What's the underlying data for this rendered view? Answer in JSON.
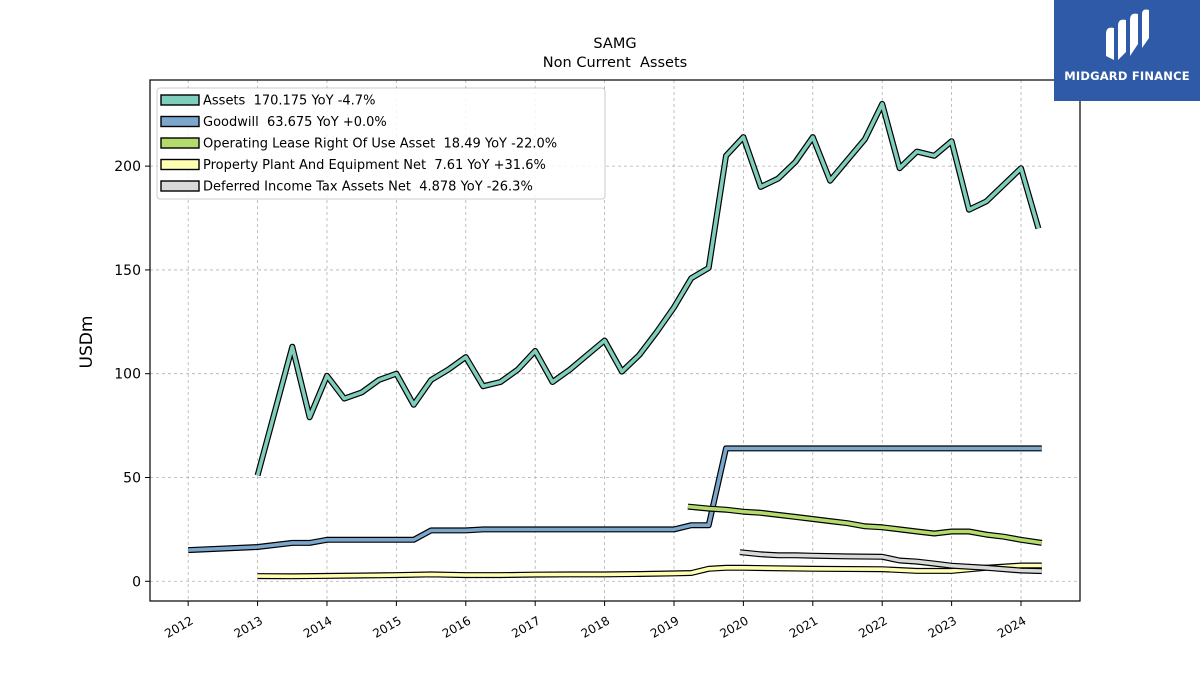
{
  "chart_data": {
    "type": "line",
    "title": "SAMG",
    "subtitle": "Non Current  Assets",
    "xlabel": "",
    "ylabel": "USDm",
    "xlim": [
      2011.45,
      2024.85
    ],
    "ylim": [
      -9.5,
      241.5
    ],
    "yticks": [
      0,
      50,
      100,
      150,
      200
    ],
    "xticks": [
      2012,
      2013,
      2014,
      2015,
      2016,
      2017,
      2018,
      2019,
      2020,
      2021,
      2022,
      2023,
      2024
    ],
    "grid": true,
    "legend_position": "top-left",
    "series": [
      {
        "name": "Assets  170.175 YoY -4.7%",
        "color": "#7fcdbb",
        "x": [
          2013.0,
          2013.5,
          2013.75,
          2014.0,
          2014.25,
          2014.5,
          2014.75,
          2015.0,
          2015.25,
          2015.5,
          2015.75,
          2016.0,
          2016.25,
          2016.5,
          2016.75,
          2017.0,
          2017.25,
          2017.5,
          2017.75,
          2018.0,
          2018.25,
          2018.5,
          2018.75,
          2019.0,
          2019.25,
          2019.5,
          2019.75,
          2020.0,
          2020.25,
          2020.5,
          2020.75,
          2021.0,
          2021.25,
          2021.5,
          2021.75,
          2022.0,
          2022.25,
          2022.5,
          2022.75,
          2023.0,
          2023.25,
          2023.5,
          2023.75,
          2024.0,
          2024.25
        ],
        "values": [
          51,
          113,
          79,
          99,
          88,
          91,
          97,
          100,
          85,
          97,
          102,
          108,
          94,
          96,
          102,
          111,
          96,
          102,
          109,
          116,
          101,
          109,
          120,
          132,
          146,
          151,
          205,
          214,
          190,
          194,
          202,
          214,
          193,
          203,
          213,
          230,
          199,
          207,
          205,
          212,
          179,
          183,
          191,
          199,
          170
        ]
      },
      {
        "name": "Goodwill  63.675 YoY +0.0%",
        "color": "#7ba7cc",
        "x": [
          2012.0,
          2013.0,
          2013.5,
          2013.75,
          2014.0,
          2014.25,
          2014.5,
          2014.75,
          2015.0,
          2015.25,
          2015.5,
          2015.75,
          2016.0,
          2016.25,
          2016.5,
          2016.75,
          2017.0,
          2017.5,
          2018.0,
          2018.5,
          2019.0,
          2019.25,
          2019.5,
          2019.75,
          2020.0,
          2021.0,
          2022.0,
          2023.0,
          2024.0,
          2024.3
        ],
        "values": [
          15,
          16.5,
          18.5,
          18.5,
          20,
          20,
          20,
          20,
          20,
          20,
          24.5,
          24.5,
          24.5,
          25,
          25,
          25,
          25,
          25,
          25,
          25,
          25,
          27,
          27,
          64,
          64,
          64,
          64,
          64,
          64,
          64
        ]
      },
      {
        "name": "Operating Lease Right Of Use Asset  18.49 YoY -22.0%",
        "color": "#b3dc6c",
        "x": [
          2019.2,
          2019.5,
          2019.75,
          2020.0,
          2020.25,
          2020.5,
          2020.75,
          2021.0,
          2021.25,
          2021.5,
          2021.75,
          2022.0,
          2022.25,
          2022.5,
          2022.75,
          2023.0,
          2023.25,
          2023.5,
          2023.75,
          2024.0,
          2024.3
        ],
        "values": [
          36,
          35,
          34.5,
          33.5,
          33,
          32,
          31,
          30,
          29,
          28,
          26.5,
          26,
          25,
          24,
          23,
          24,
          24,
          22.5,
          21.5,
          20,
          18.5
        ]
      },
      {
        "name": "Property Plant And Equipment Net  7.61 YoY +31.6%",
        "color": "#ffffb3",
        "x": [
          2013.0,
          2013.5,
          2014.0,
          2014.5,
          2015.0,
          2015.5,
          2016.0,
          2016.5,
          2017.0,
          2017.5,
          2018.0,
          2018.5,
          2019.0,
          2019.25,
          2019.5,
          2019.75,
          2020.0,
          2021.0,
          2022.0,
          2022.5,
          2023.0,
          2023.5,
          2024.0,
          2024.3
        ],
        "values": [
          2.5,
          2.4,
          2.6,
          2.8,
          3,
          3.3,
          3,
          3,
          3.2,
          3.3,
          3.3,
          3.5,
          3.8,
          4,
          6,
          6.5,
          6.5,
          6,
          5.8,
          5,
          5,
          6.5,
          7.6,
          7.6
        ]
      },
      {
        "name": "Deferred Income Tax Assets Net  4.878 YoY -26.3%",
        "color": "#d9d9d9",
        "x": [
          2019.95,
          2020.25,
          2020.5,
          2020.75,
          2021.0,
          2021.5,
          2022.0,
          2022.25,
          2022.5,
          2022.75,
          2023.0,
          2023.5,
          2024.0,
          2024.3
        ],
        "values": [
          14,
          13,
          12.5,
          12.5,
          12.3,
          12,
          11.8,
          10,
          9.5,
          8.5,
          7.5,
          6.5,
          5.2,
          4.9
        ]
      }
    ]
  },
  "logo": {
    "text": "MIDGARD FINANCE",
    "icon": "midgard-logo-icon",
    "background": "#2e5aa8"
  }
}
